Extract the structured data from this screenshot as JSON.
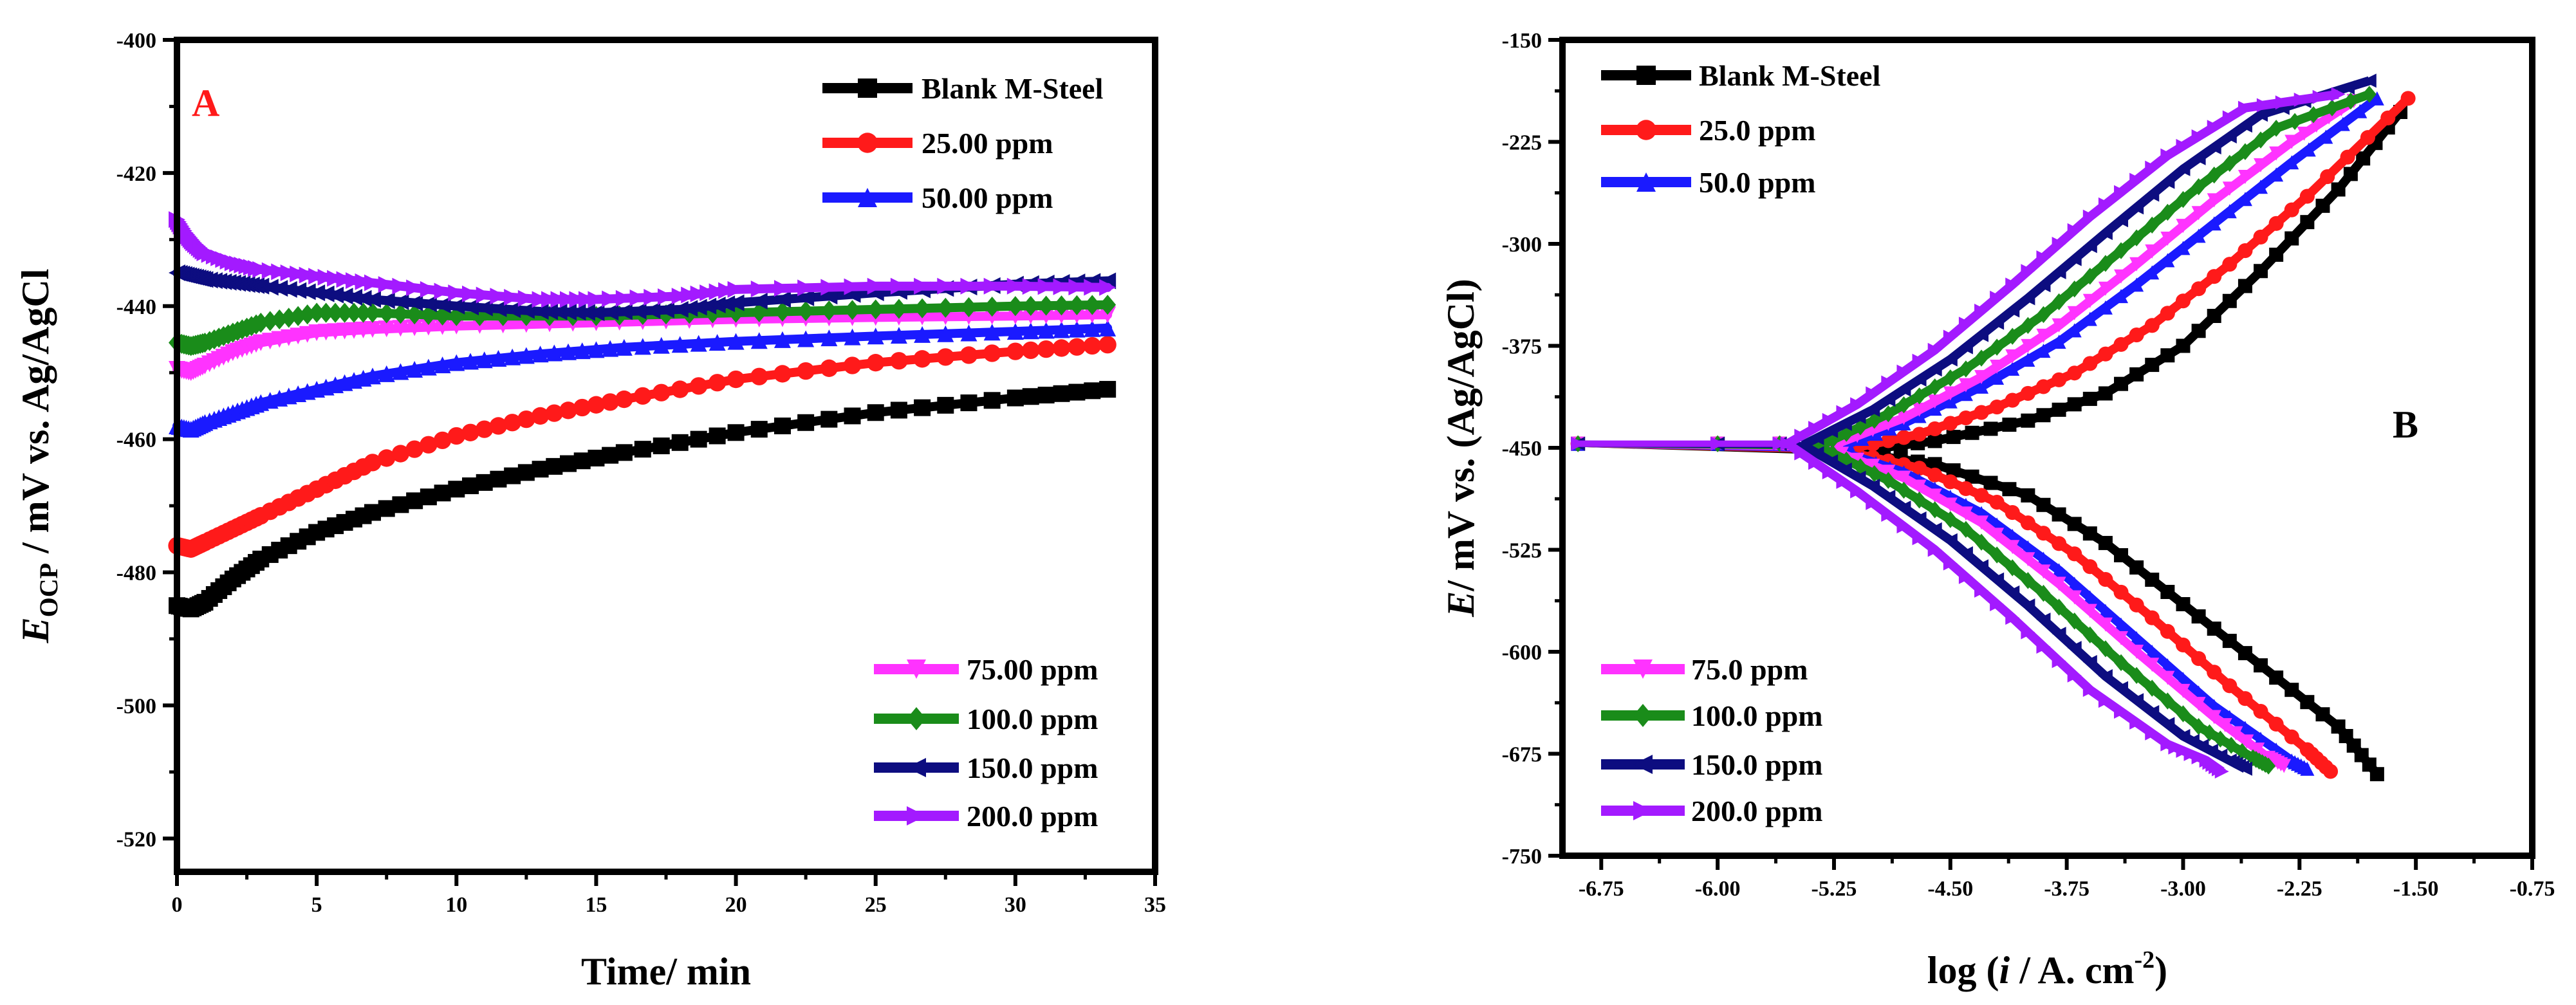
{
  "chart_data": [
    {
      "type": "line",
      "panel_label": "A",
      "panel_label_color": "#ff1a1a",
      "xlabel": "Time/ min",
      "ylabel_main": "E",
      "ylabel_sub": "OCP",
      "ylabel_rest": " / mV vs. Ag/AgCl",
      "xlim": [
        0,
        35
      ],
      "ylim": [
        -525,
        -400
      ],
      "xticks": [
        0,
        5,
        10,
        15,
        20,
        25,
        30,
        35
      ],
      "yticks": [
        -520,
        -500,
        -480,
        -460,
        -440,
        -420,
        -400
      ],
      "legend_top": [
        "Blank M-Steel",
        "25.00 ppm",
        "50.00 ppm"
      ],
      "legend_bottom": [
        "75.00 ppm",
        "100.0 ppm",
        "150.0 ppm",
        "200.0 ppm"
      ],
      "series": [
        {
          "name": "Blank M-Steel",
          "color": "#000000",
          "marker": "square",
          "x": [
            0,
            0.5,
            1,
            2,
            3,
            5,
            7,
            10,
            13,
            16,
            20,
            25,
            30,
            33.3
          ],
          "y": [
            -485,
            -485.5,
            -484.5,
            -481,
            -478,
            -474,
            -471,
            -467.5,
            -464.5,
            -462,
            -459,
            -456,
            -453.8,
            -452.5
          ]
        },
        {
          "name": "25.00 ppm",
          "color": "#ff1a1a",
          "marker": "circle",
          "x": [
            0,
            0.5,
            1,
            2,
            3,
            5,
            7,
            10,
            13,
            16,
            20,
            25,
            30,
            33.3
          ],
          "y": [
            -476,
            -476.5,
            -475.5,
            -473.5,
            -471.5,
            -467.5,
            -463.5,
            -459.5,
            -456.5,
            -454,
            -451,
            -448.5,
            -446.8,
            -445.8
          ]
        },
        {
          "name": "50.00 ppm",
          "color": "#1a1aff",
          "marker": "triangle-up",
          "x": [
            0,
            0.5,
            1,
            2,
            3,
            5,
            7,
            10,
            13,
            16,
            20,
            25,
            30,
            33.3
          ],
          "y": [
            -458,
            -458.5,
            -457.5,
            -456,
            -454.5,
            -452.5,
            -450.5,
            -448.5,
            -447.2,
            -446.2,
            -445.3,
            -444.5,
            -443.8,
            -443.3
          ]
        },
        {
          "name": "75.00 ppm",
          "color": "#ff33ff",
          "marker": "triangle-down",
          "x": [
            0,
            0.5,
            1,
            2,
            3,
            5,
            7,
            10,
            15,
            20,
            25,
            30,
            33.3
          ],
          "y": [
            -449.5,
            -450,
            -449,
            -447,
            -445.5,
            -444,
            -443.5,
            -443,
            -442.5,
            -442,
            -441.7,
            -441.5,
            -441.3
          ]
        },
        {
          "name": "100.0 ppm",
          "color": "#1a8c1a",
          "marker": "diamond",
          "x": [
            0,
            0.5,
            1,
            2,
            3,
            5,
            7,
            10,
            15,
            20,
            25,
            30,
            33.3
          ],
          "y": [
            -445.5,
            -446,
            -445.5,
            -444,
            -442.5,
            -441,
            -441,
            -441.5,
            -441.5,
            -441,
            -440.5,
            -440,
            -439.8
          ]
        },
        {
          "name": "150.0 ppm",
          "color": "#0d0d80",
          "marker": "triangle-left",
          "x": [
            0,
            0.5,
            1,
            2,
            3,
            5,
            7,
            10,
            13,
            15,
            18,
            20,
            25,
            30,
            33.3
          ],
          "y": [
            -435,
            -435.5,
            -436,
            -436.5,
            -437,
            -438,
            -439,
            -440,
            -440.8,
            -441,
            -440.5,
            -439.5,
            -438,
            -436.7,
            -436.2
          ]
        },
        {
          "name": "200.0 ppm",
          "color": "#a31aff",
          "marker": "triangle-right",
          "x": [
            0,
            0.3,
            0.6,
            1,
            2,
            3,
            5,
            7,
            10,
            13,
            15,
            18,
            20,
            25,
            30,
            33.3
          ],
          "y": [
            -427,
            -429,
            -430.5,
            -432,
            -433.5,
            -434.5,
            -435.5,
            -436.5,
            -438,
            -439,
            -439,
            -438.5,
            -437.5,
            -437,
            -437,
            -437.2
          ]
        }
      ]
    },
    {
      "type": "line",
      "panel_label": "B",
      "panel_label_color": "#000000",
      "xlabel_prefix": "log (",
      "xlabel_italic": "i",
      "xlabel_mid": " /  A. cm",
      "xlabel_sup": "-2",
      "xlabel_suffix": ")",
      "ylabel_main": "E",
      "ylabel_rest": "/ mV vs. (Ag/AgCl)",
      "xlim": [
        -7,
        -0.75
      ],
      "ylim": [
        -750,
        -150
      ],
      "xticks": [
        "-6.75",
        "-6.00",
        "-5.25",
        "-4.50",
        "-3.75",
        "-3.00",
        "-2.25",
        "-1.50",
        "-0.75"
      ],
      "yticks": [
        "-150",
        "-225",
        "-300",
        "-375",
        "-450",
        "-525",
        "-600",
        "-675",
        "-750"
      ],
      "legend_top": [
        "Blank M-Steel",
        "25.0 ppm",
        "50.0 ppm"
      ],
      "legend_bottom": [
        "75.0 ppm",
        "100.0 ppm",
        "150.0 ppm",
        "200.0 ppm"
      ],
      "series": [
        {
          "name": "Blank M-Steel",
          "color": "#000000",
          "marker": "square",
          "x": [
            -5.15,
            -4.6,
            -4.0,
            -3.5,
            -3.0,
            -2.5,
            -2.0,
            -1.6
          ],
          "y": [
            -453,
            -445,
            -430,
            -410,
            -375,
            -320,
            -260,
            -203
          ],
          "x2": [
            -5.15,
            -4.6,
            -4.0,
            -3.5,
            -3.0,
            -2.5,
            -2.0,
            -1.75
          ],
          "y2": [
            -453,
            -462,
            -485,
            -520,
            -565,
            -610,
            -655,
            -690
          ]
        },
        {
          "name": "25.0 ppm",
          "color": "#ff1a1a",
          "marker": "circle",
          "x": [
            -5.2,
            -4.7,
            -4.2,
            -3.7,
            -3.2,
            -2.7,
            -2.2,
            -1.55
          ],
          "y": [
            -452,
            -440,
            -420,
            -395,
            -360,
            -315,
            -265,
            -193
          ],
          "x2": [
            -5.2,
            -4.7,
            -4.2,
            -3.7,
            -3.2,
            -2.7,
            -2.2,
            -2.05
          ],
          "y2": [
            -452,
            -465,
            -490,
            -528,
            -575,
            -625,
            -672,
            -688
          ]
        },
        {
          "name": "50.0 ppm",
          "color": "#1a1aff",
          "marker": "triangle-up",
          "x": [
            -5.25,
            -4.8,
            -4.3,
            -3.8,
            -3.3,
            -2.8,
            -2.3,
            -1.75
          ],
          "y": [
            -451,
            -432,
            -405,
            -372,
            -330,
            -285,
            -240,
            -193
          ],
          "x2": [
            -5.25,
            -4.8,
            -4.3,
            -3.8,
            -3.3,
            -2.8,
            -2.3,
            -2.2
          ],
          "y2": [
            -451,
            -468,
            -498,
            -540,
            -590,
            -640,
            -680,
            -686
          ]
        },
        {
          "name": "75.0 ppm",
          "color": "#ff33ff",
          "marker": "triangle-down",
          "x": [
            -5.3,
            -4.8,
            -4.3,
            -3.8,
            -3.3,
            -2.8,
            -2.3,
            -1.9
          ],
          "y": [
            -450,
            -428,
            -398,
            -360,
            -315,
            -268,
            -225,
            -195
          ],
          "x2": [
            -5.3,
            -4.8,
            -4.3,
            -3.8,
            -3.3,
            -2.8,
            -2.45,
            -2.35
          ],
          "y2": [
            -450,
            -472,
            -505,
            -550,
            -600,
            -648,
            -678,
            -684
          ]
        },
        {
          "name": "100.0 ppm",
          "color": "#1a8c1a",
          "marker": "diamond",
          "x": [
            -5.35,
            -4.9,
            -4.4,
            -3.9,
            -3.4,
            -2.9,
            -2.4,
            -1.8
          ],
          "y": [
            -449,
            -425,
            -392,
            -352,
            -305,
            -258,
            -215,
            -190
          ],
          "x2": [
            -5.35,
            -4.9,
            -4.4,
            -3.9,
            -3.4,
            -2.9,
            -2.55,
            -2.45
          ],
          "y2": [
            -449,
            -474,
            -510,
            -557,
            -608,
            -655,
            -678,
            -684
          ]
        },
        {
          "name": "150.0 ppm",
          "color": "#0d0d80",
          "marker": "triangle-left",
          "x": [
            -5.45,
            -5.0,
            -4.5,
            -4.0,
            -3.5,
            -3.0,
            -2.5,
            -1.8
          ],
          "y": [
            -448,
            -422,
            -385,
            -340,
            -292,
            -245,
            -205,
            -180
          ],
          "x2": [
            -5.45,
            -5.0,
            -4.5,
            -4.0,
            -3.5,
            -3.0,
            -2.7,
            -2.6
          ],
          "y2": [
            -448,
            -478,
            -518,
            -566,
            -618,
            -662,
            -680,
            -686
          ]
        },
        {
          "name": "200.0 ppm",
          "color": "#a31aff",
          "marker": "triangle-right",
          "x": [
            -5.55,
            -5.1,
            -4.6,
            -4.1,
            -3.6,
            -3.1,
            -2.6,
            -2.0
          ],
          "y": [
            -447,
            -418,
            -378,
            -330,
            -280,
            -235,
            -200,
            -190
          ],
          "x2": [
            -5.55,
            -5.1,
            -4.6,
            -4.1,
            -3.6,
            -3.1,
            -2.85,
            -2.75
          ],
          "y2": [
            -447,
            -482,
            -525,
            -575,
            -628,
            -668,
            -680,
            -688
          ]
        }
      ]
    }
  ]
}
